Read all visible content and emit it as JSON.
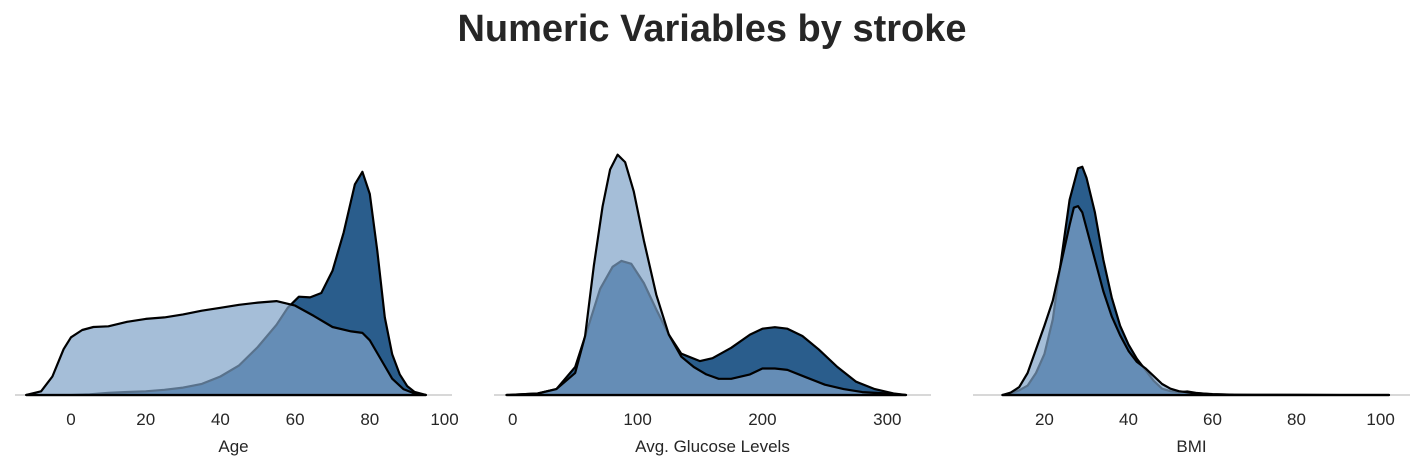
{
  "title": "Numeric Variables by stroke",
  "chart_data": [
    {
      "type": "area",
      "xlabel": "Age",
      "xlim": [
        -15,
        102
      ],
      "xticks": [
        0,
        20,
        40,
        60,
        80,
        100
      ],
      "ylim": [
        0,
        0.0345
      ],
      "series": [
        {
          "color": "#2a5d8c",
          "points": [
            [
              -12,
              0
            ],
            [
              -8,
              0
            ],
            [
              -4,
              0
            ],
            [
              0,
              0
            ],
            [
              5,
              0.0001
            ],
            [
              10,
              0.0003
            ],
            [
              15,
              0.0004
            ],
            [
              20,
              0.0005
            ],
            [
              25,
              0.0007
            ],
            [
              30,
              0.001
            ],
            [
              35,
              0.0015
            ],
            [
              40,
              0.0025
            ],
            [
              45,
              0.004
            ],
            [
              50,
              0.0065
            ],
            [
              55,
              0.0095
            ],
            [
              58,
              0.0118
            ],
            [
              61,
              0.0133
            ],
            [
              64,
              0.0132
            ],
            [
              67,
              0.0138
            ],
            [
              70,
              0.0168
            ],
            [
              73,
              0.022
            ],
            [
              76,
              0.0285
            ],
            [
              78,
              0.0302
            ],
            [
              80,
              0.0272
            ],
            [
              82,
              0.0195
            ],
            [
              84,
              0.0105
            ],
            [
              86,
              0.0055
            ],
            [
              88,
              0.0028
            ],
            [
              90,
              0.0012
            ],
            [
              92,
              0.0004
            ],
            [
              95,
              0
            ]
          ]
        },
        {
          "color": "#7fa3c8",
          "points": [
            [
              -12,
              0
            ],
            [
              -8,
              0.0005
            ],
            [
              -5,
              0.0025
            ],
            [
              -2,
              0.0062
            ],
            [
              0,
              0.0078
            ],
            [
              3,
              0.0088
            ],
            [
              6,
              0.0092
            ],
            [
              10,
              0.0093
            ],
            [
              15,
              0.0099
            ],
            [
              20,
              0.0103
            ],
            [
              25,
              0.0105
            ],
            [
              30,
              0.0109
            ],
            [
              35,
              0.0114
            ],
            [
              40,
              0.0118
            ],
            [
              45,
              0.0122
            ],
            [
              50,
              0.0125
            ],
            [
              55,
              0.0127
            ],
            [
              60,
              0.0121
            ],
            [
              65,
              0.0107
            ],
            [
              70,
              0.0092
            ],
            [
              75,
              0.0086
            ],
            [
              78,
              0.0084
            ],
            [
              80,
              0.0074
            ],
            [
              83,
              0.0048
            ],
            [
              86,
              0.0022
            ],
            [
              89,
              0.0008
            ],
            [
              92,
              0.0002
            ],
            [
              95,
              0
            ]
          ]
        }
      ]
    },
    {
      "type": "area",
      "xlabel": "Avg. Glucose Levels",
      "xlim": [
        -15,
        335
      ],
      "xticks": [
        0,
        100,
        200,
        300
      ],
      "ylim": [
        0,
        0.0173
      ],
      "series": [
        {
          "color": "#2a5d8c",
          "points": [
            [
              -5,
              0
            ],
            [
              20,
              0.0001
            ],
            [
              35,
              0.0004
            ],
            [
              50,
              0.0019
            ],
            [
              60,
              0.0045
            ],
            [
              70,
              0.0072
            ],
            [
              80,
              0.0087
            ],
            [
              87,
              0.0091
            ],
            [
              95,
              0.0089
            ],
            [
              105,
              0.0076
            ],
            [
              115,
              0.0058
            ],
            [
              125,
              0.0041
            ],
            [
              135,
              0.0028
            ],
            [
              150,
              0.0023
            ],
            [
              160,
              0.0025
            ],
            [
              175,
              0.0032
            ],
            [
              190,
              0.0041
            ],
            [
              200,
              0.0045
            ],
            [
              210,
              0.0046
            ],
            [
              220,
              0.0045
            ],
            [
              232,
              0.004
            ],
            [
              245,
              0.0031
            ],
            [
              260,
              0.0019
            ],
            [
              275,
              0.0009
            ],
            [
              290,
              0.0004
            ],
            [
              305,
              0.0001
            ],
            [
              315,
              0
            ]
          ]
        },
        {
          "color": "#7fa3c8",
          "points": [
            [
              -5,
              0
            ],
            [
              20,
              0.0001
            ],
            [
              35,
              0.0004
            ],
            [
              50,
              0.0015
            ],
            [
              58,
              0.004
            ],
            [
              65,
              0.0088
            ],
            [
              72,
              0.0128
            ],
            [
              78,
              0.0153
            ],
            [
              84,
              0.0163
            ],
            [
              90,
              0.0158
            ],
            [
              97,
              0.0138
            ],
            [
              105,
              0.0105
            ],
            [
              115,
              0.0068
            ],
            [
              125,
              0.0041
            ],
            [
              135,
              0.0026
            ],
            [
              145,
              0.0019
            ],
            [
              155,
              0.0014
            ],
            [
              165,
              0.0011
            ],
            [
              175,
              0.0011
            ],
            [
              190,
              0.0014
            ],
            [
              200,
              0.0018
            ],
            [
              210,
              0.0018
            ],
            [
              220,
              0.0017
            ],
            [
              235,
              0.0012
            ],
            [
              250,
              0.0007
            ],
            [
              265,
              0.0004
            ],
            [
              280,
              0.0002
            ],
            [
              300,
              0.0001
            ],
            [
              315,
              0
            ]
          ]
        }
      ]
    },
    {
      "type": "area",
      "xlabel": "BMI",
      "xlim": [
        3,
        107
      ],
      "xticks": [
        20,
        40,
        60,
        80,
        100
      ],
      "ylim": [
        0,
        0.081
      ],
      "series": [
        {
          "color": "#2a5d8c",
          "points": [
            [
              10,
              0
            ],
            [
              12,
              0.0005
            ],
            [
              14,
              0.0015
            ],
            [
              16,
              0.003
            ],
            [
              18,
              0.007
            ],
            [
              20,
              0.013
            ],
            [
              22,
              0.024
            ],
            [
              24,
              0.043
            ],
            [
              26,
              0.062
            ],
            [
              28,
              0.072
            ],
            [
              29,
              0.0725
            ],
            [
              30,
              0.069
            ],
            [
              32,
              0.058
            ],
            [
              34,
              0.043
            ],
            [
              36,
              0.031
            ],
            [
              38,
              0.022
            ],
            [
              40,
              0.016
            ],
            [
              42,
              0.0115
            ],
            [
              44,
              0.008
            ],
            [
              46,
              0.0045
            ],
            [
              48,
              0.002
            ],
            [
              50,
              0.0012
            ],
            [
              52,
              0.0009
            ],
            [
              54,
              0.0011
            ],
            [
              56,
              0.0007
            ],
            [
              58,
              0.0004
            ],
            [
              60,
              0.0002
            ],
            [
              65,
              0.0001
            ],
            [
              70,
              5e-05
            ],
            [
              80,
              2e-05
            ],
            [
              90,
              1e-05
            ],
            [
              102,
              0
            ]
          ]
        },
        {
          "color": "#7fa3c8",
          "points": [
            [
              10,
              0
            ],
            [
              12,
              0.0008
            ],
            [
              14,
              0.0025
            ],
            [
              16,
              0.007
            ],
            [
              18,
              0.0145
            ],
            [
              20,
              0.022
            ],
            [
              22,
              0.03
            ],
            [
              24,
              0.042
            ],
            [
              26,
              0.054
            ],
            [
              27,
              0.0595
            ],
            [
              28,
              0.06
            ],
            [
              29,
              0.058
            ],
            [
              30,
              0.053
            ],
            [
              32,
              0.043
            ],
            [
              34,
              0.033
            ],
            [
              36,
              0.025
            ],
            [
              38,
              0.019
            ],
            [
              40,
              0.014
            ],
            [
              42,
              0.0105
            ],
            [
              44,
              0.0085
            ],
            [
              46,
              0.006
            ],
            [
              48,
              0.0035
            ],
            [
              50,
              0.002
            ],
            [
              52,
              0.0012
            ],
            [
              55,
              0.0007
            ],
            [
              60,
              0.0003
            ],
            [
              65,
              0.0001
            ],
            [
              75,
              3e-05
            ],
            [
              90,
              1e-05
            ],
            [
              102,
              0
            ]
          ]
        }
      ]
    }
  ]
}
